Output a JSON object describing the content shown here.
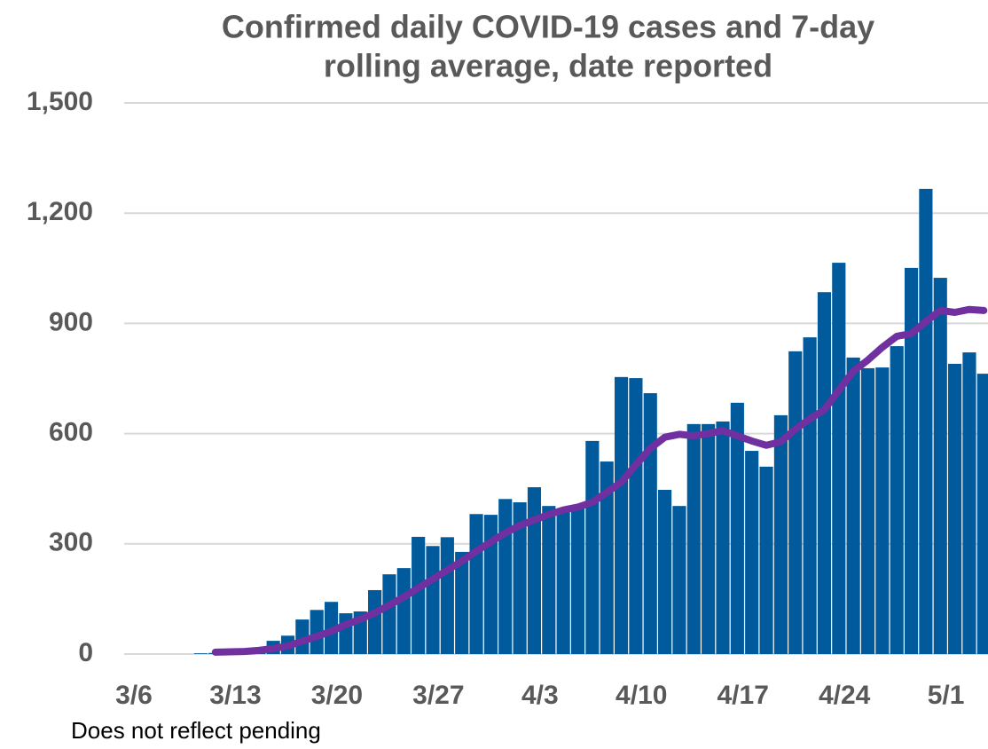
{
  "chart_data": {
    "type": "bar",
    "title": [
      "Confirmed daily COVID-19 cases and 7-day",
      "rolling average, date reported"
    ],
    "categories": [
      "3/6",
      null,
      null,
      null,
      null,
      null,
      null,
      "3/13",
      null,
      null,
      null,
      null,
      null,
      null,
      "3/20",
      null,
      null,
      null,
      null,
      null,
      null,
      "3/27",
      null,
      null,
      null,
      null,
      null,
      null,
      "4/3",
      null,
      null,
      null,
      null,
      null,
      null,
      "4/10",
      null,
      null,
      null,
      null,
      null,
      null,
      "4/17",
      null,
      null,
      null,
      null,
      null,
      null,
      "4/24",
      null,
      null,
      null,
      null,
      null,
      null,
      "5/1",
      null,
      null
    ],
    "series": [
      {
        "type": "bar",
        "color": "#005a9c",
        "values": [
          0,
          0,
          0,
          0,
          2,
          3,
          4,
          5,
          10,
          36,
          50,
          94,
          120,
          142,
          111,
          116,
          174,
          217,
          234,
          319,
          294,
          318,
          278,
          381,
          379,
          422,
          413,
          454,
          403,
          386,
          403,
          580,
          524,
          754,
          751,
          710,
          447,
          403,
          626,
          626,
          633,
          684,
          553,
          510,
          650,
          824,
          862,
          985,
          1065,
          807,
          778,
          780,
          838,
          1051,
          1266,
          1024,
          790,
          821,
          763
        ]
      },
      {
        "type": "line",
        "color": "#7030a0",
        "values": [
          null,
          null,
          null,
          null,
          null,
          5,
          6,
          7,
          10,
          15,
          22,
          35,
          48,
          62,
          80,
          95,
          112,
          133,
          155,
          180,
          204,
          228,
          253,
          280,
          305,
          330,
          350,
          365,
          380,
          392,
          400,
          413,
          440,
          468,
          515,
          560,
          590,
          598,
          594,
          600,
          608,
          594,
          580,
          568,
          578,
          612,
          640,
          665,
          718,
          770,
          800,
          835,
          865,
          872,
          905,
          935,
          930,
          938,
          935
        ]
      }
    ],
    "ylim": [
      0,
      1500
    ],
    "yticks": [
      0,
      300,
      600,
      900,
      {
        "value": 1200,
        "label": "1,200"
      },
      {
        "value": 1500,
        "label": "1,500"
      }
    ],
    "grid": true,
    "note": "Does not reflect pending"
  }
}
